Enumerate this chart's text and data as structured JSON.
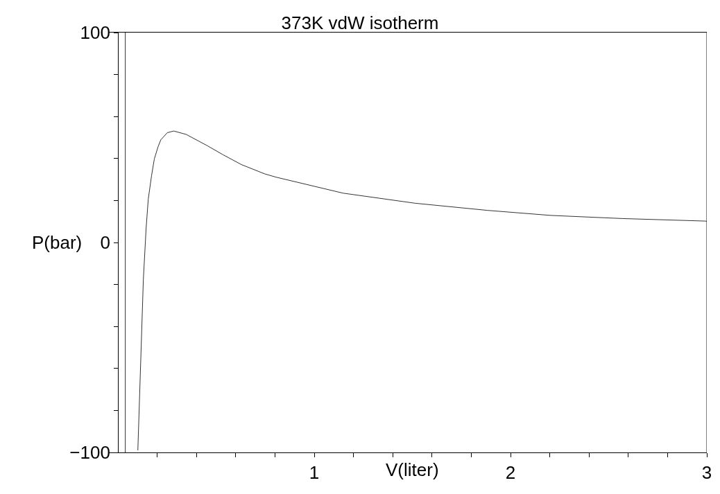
{
  "chart_data": {
    "type": "line",
    "title": "373K vdW isotherm",
    "xlabel": "V(liter)",
    "ylabel": "P(bar)",
    "x": [
      0.101,
      0.129,
      0.143,
      0.154,
      0.171,
      0.185,
      0.204,
      0.218,
      0.251,
      0.284,
      0.347,
      0.453,
      0.535,
      0.629,
      0.747,
      0.806,
      1.147,
      1.514,
      1.882,
      2.205,
      2.572,
      2.992,
      3.0
    ],
    "series": [
      {
        "color": "#333333",
        "values": [
          -99,
          -17.8,
          6.6,
          20.6,
          31.9,
          39.8,
          45.6,
          48.9,
          52.3,
          53.1,
          51.5,
          46.2,
          41.8,
          37.1,
          32.7,
          31.1,
          23.5,
          18.7,
          15.3,
          12.9,
          11.4,
          10.2,
          10.1
        ]
      }
    ],
    "xlim": [
      -0.05,
      3
    ],
    "ylim": [
      -100,
      100
    ],
    "xticks": [
      {
        "value": 0.2,
        "label": null
      },
      {
        "value": 0.4,
        "label": null
      },
      {
        "value": 0.6,
        "label": null
      },
      {
        "value": 0.8,
        "label": null
      },
      1,
      {
        "value": 1.2,
        "label": null
      },
      {
        "value": 1.4,
        "label": null
      },
      {
        "value": 1.6,
        "label": null
      },
      {
        "value": 1.8,
        "label": null
      },
      2,
      {
        "value": 2.2,
        "label": null
      },
      {
        "value": 2.4,
        "label": null
      },
      {
        "value": 2.6,
        "label": null
      },
      {
        "value": 2.8,
        "label": null
      },
      3
    ],
    "yticks": [
      {
        "value": -100,
        "label": "−100"
      },
      {
        "value": -80,
        "label": null
      },
      {
        "value": -60,
        "label": null
      },
      {
        "value": -40,
        "label": null
      },
      {
        "value": -20,
        "label": null
      },
      0,
      {
        "value": 20,
        "label": null
      },
      {
        "value": 40,
        "label": null
      },
      {
        "value": 60,
        "label": null
      },
      {
        "value": 80,
        "label": null
      },
      100
    ],
    "ref_lines": [
      {
        "axis": "x",
        "value": 0.037,
        "color": "#333333"
      }
    ],
    "marker": "none",
    "line_style": "solid"
  }
}
